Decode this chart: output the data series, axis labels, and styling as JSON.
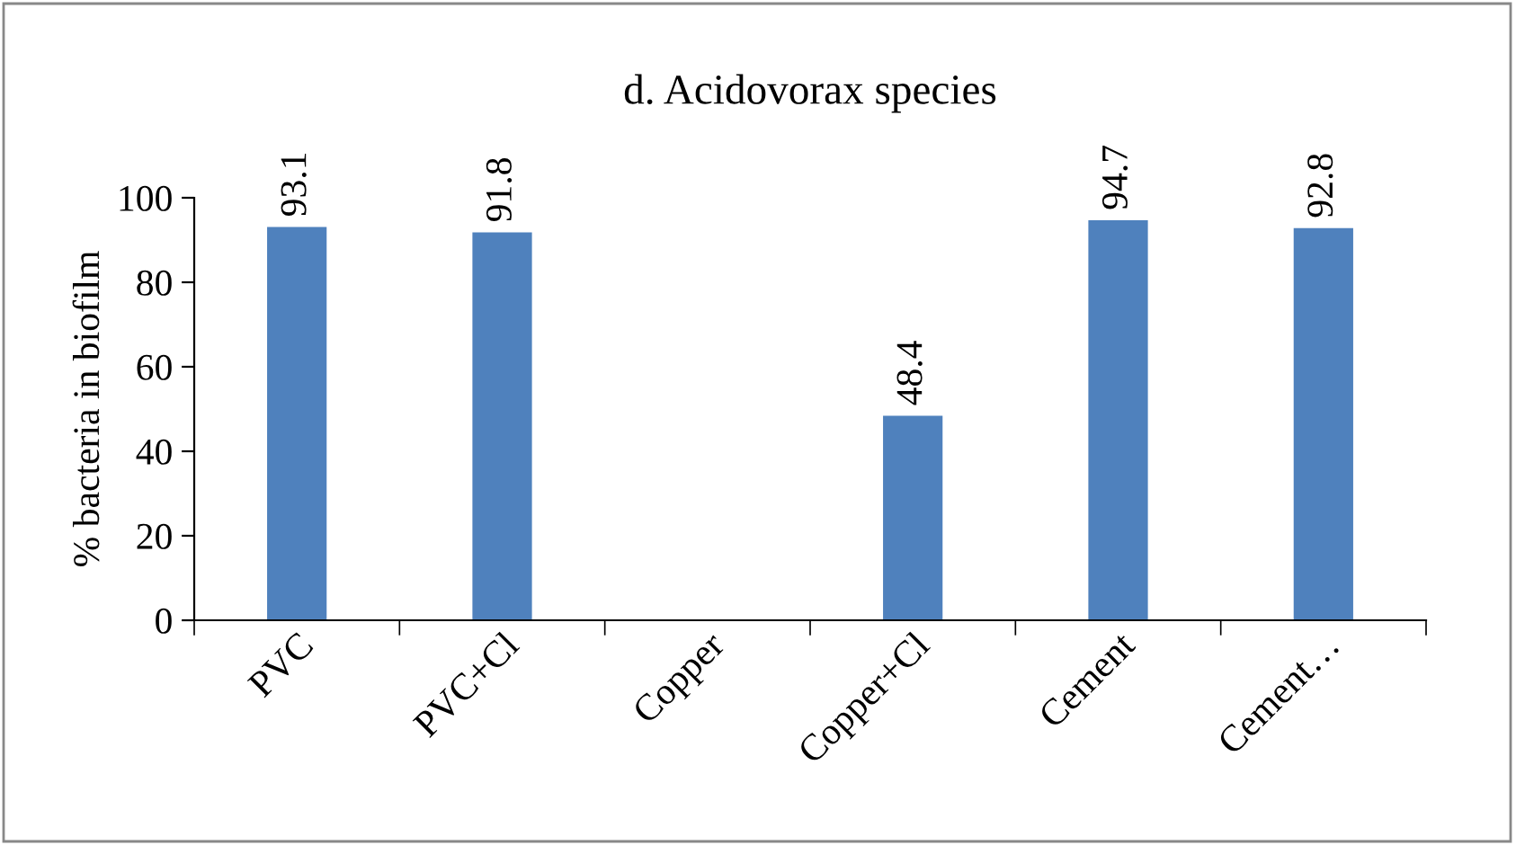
{
  "chart_data": {
    "type": "bar",
    "title": "d. Acidovorax species",
    "ylabel": "% bacteria in biofilm",
    "categories": [
      "PVC",
      "PVC+Cl",
      "Copper",
      "Copper+Cl",
      "Cement",
      "Cement…"
    ],
    "values": [
      93.1,
      91.8,
      null,
      48.4,
      94.7,
      92.8
    ],
    "value_labels": [
      "93.1",
      "91.8",
      null,
      "48.4",
      "94.7",
      "92.8"
    ],
    "color": "#4f81bd",
    "ylim": [
      0,
      100
    ],
    "yticks": [
      0,
      20,
      40,
      60,
      80,
      100
    ],
    "grid": false
  }
}
